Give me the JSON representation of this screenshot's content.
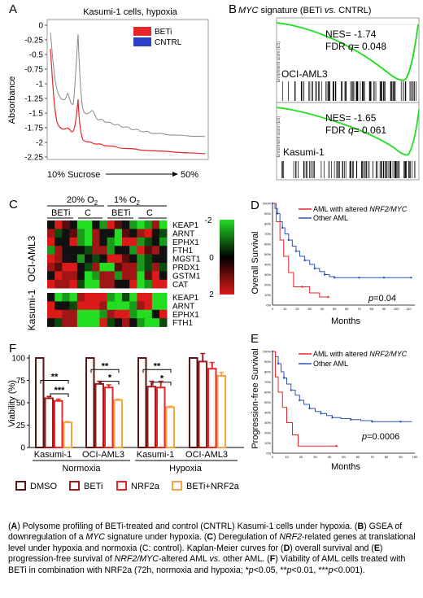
{
  "panel_letters": {
    "a": "A",
    "b": "B",
    "c": "C",
    "d": "D",
    "e": "E",
    "f": "F"
  },
  "panel_a": {
    "title": "Kasumi-1 cells, hypoxia",
    "ylabel": "Absorbance",
    "xlabel_left": "10% Sucrose",
    "xlabel_right": "50%",
    "legend": [
      {
        "name": "BETi",
        "color": "#e8262b"
      },
      {
        "name": "CNTRL",
        "color": "#2b3fc8"
      }
    ],
    "yticks": [
      "0",
      "-0.25",
      "-0.5",
      "-0.75",
      "-1",
      "-1.25",
      "-1.5",
      "-1.75",
      "-2",
      "-2.25"
    ]
  },
  "panel_b": {
    "title_italic": "MYC",
    "title_rest": " signature (BETi ",
    "title_vs": "vs.",
    "title_end": " CNTRL)",
    "top": {
      "cell": "OCI-AML3",
      "nes": "NES= -1.74",
      "fdr_prefix": "FDR ",
      "fdr_q": "q",
      "fdr_value": "= 0.048",
      "ylabel": "Enrichment score (ES)"
    },
    "bottom": {
      "cell": "Kasumi-1",
      "nes": "NES= -1.65",
      "fdr_prefix": "FDR ",
      "fdr_q": "q",
      "fdr_value": "= 0.061",
      "ylabel": "Enrichment score (ES)"
    }
  },
  "panel_c": {
    "group1": "20% O2",
    "group2": "1% O2",
    "cols": [
      "BETi",
      "C",
      "BETi",
      "C"
    ],
    "row_group1": "OCI-AML3",
    "row_group2": "Kasumi-1",
    "genes1": [
      "KEAP1",
      "ARNT",
      "EPHX1",
      "FTH1",
      "MGST1",
      "PRDX1",
      "GSTM1",
      "CAT"
    ],
    "genes2": [
      "KEAP1",
      "ARNT",
      "EPHX1",
      "FTH1"
    ],
    "scale": [
      "-2",
      "0",
      "2"
    ]
  },
  "panel_d": {
    "ylabel": "Overall Survival",
    "xlabel": "Months",
    "legend1_prefix": "AML with altered ",
    "legend1_italic": "NRF2/MYC",
    "legend2": "Other AML",
    "pvalue": "p=0.04",
    "xticks": [
      "0",
      "10",
      "20",
      "30",
      "40",
      "50",
      "60",
      "70",
      "80",
      "90",
      "100",
      "110"
    ],
    "yticks": [
      "100%",
      "90%",
      "80%",
      "70%",
      "60%",
      "50%",
      "40%",
      "30%",
      "20%",
      "10%",
      "0%"
    ]
  },
  "panel_e": {
    "ylabel": "Progression-free Survival",
    "xlabel": "Months",
    "legend1_prefix": "AML with altered ",
    "legend1_italic": "NRF2/MYC",
    "legend2": "Other AML",
    "pvalue": "p=0.0006",
    "xticks": [
      "0",
      "10",
      "20",
      "30",
      "40",
      "50",
      "60",
      "70",
      "80",
      "90",
      "100"
    ],
    "yticks": [
      "100%",
      "90%",
      "80%",
      "70%",
      "60%",
      "50%",
      "40%",
      "30%",
      "20%",
      "10%",
      "0%"
    ]
  },
  "colors": {
    "red": "#e8262b",
    "blue": "#2c53b8",
    "green": "#22dd22",
    "dmso": "#5a1414",
    "beti": "#a21a1a",
    "nrf2": "#e8262b",
    "combo": "#f4a443"
  },
  "chart_data": {
    "type": "bar",
    "ylabel": "Viability (%)",
    "ylim": [
      0,
      100
    ],
    "yticks": [
      "0",
      "25",
      "50",
      "75",
      "100"
    ],
    "categories": [
      "Kasumi-1",
      "OCI-AML3",
      "Kasumi-1",
      "OCI-AML3"
    ],
    "groups": [
      "Normoxia",
      "Hypoxia"
    ],
    "series": [
      {
        "name": "DMSO",
        "values": [
          100,
          100,
          100,
          100
        ]
      },
      {
        "name": "BETi",
        "values": [
          55,
          71,
          68,
          96
        ]
      },
      {
        "name": "NRF2a",
        "values": [
          52,
          67,
          67,
          88
        ]
      },
      {
        "name": "BETi+NRF2a",
        "values": [
          28,
          53,
          45,
          80
        ]
      }
    ],
    "errors": [
      [
        0,
        0,
        0,
        0
      ],
      [
        2,
        3,
        6,
        9
      ],
      [
        2,
        3,
        7,
        7
      ],
      [
        1,
        1,
        1,
        4
      ]
    ],
    "significance": [
      "**",
      "***",
      "**",
      "*",
      "**",
      "*"
    ]
  },
  "caption": {
    "a_letter": "A",
    "a_text": ") Polysome profiling of BETi-treated and control (CNTRL) Kasumi-1 cells under hypoxia.",
    "b_letter": "B",
    "b_text1": ") GSEA of downregulation of a ",
    "b_myc": "MYC",
    "b_text2": " signature under hypoxia. (",
    "c_letter": "C",
    "c_text1": ") Deregulation of ",
    "c_nrf2": "NRF2",
    "c_text2": "-related genes at translational level under hypoxia and normoxia (C: control). Kaplan-Meier curves for (",
    "d_letter": "D",
    "d_text": ") overall survival and (",
    "e_letter": "E",
    "e_text1": ") progression-free survival of ",
    "e_nm": "NRF2/MYC",
    "e_text2": "-altered AML ",
    "e_vs": "vs.",
    "e_text3": " other AML. (",
    "f_letter": "F",
    "f_text1": ") Viability of AML cells treated with BETi in combination with NRF2a (72h, normoxia and hypoxia; ",
    "p1": "p",
    "p1v": "<0.05, **",
    "p2": "p",
    "p2v": "<0.01, ***",
    "p3": "p",
    "p3v": "<0.001)."
  }
}
